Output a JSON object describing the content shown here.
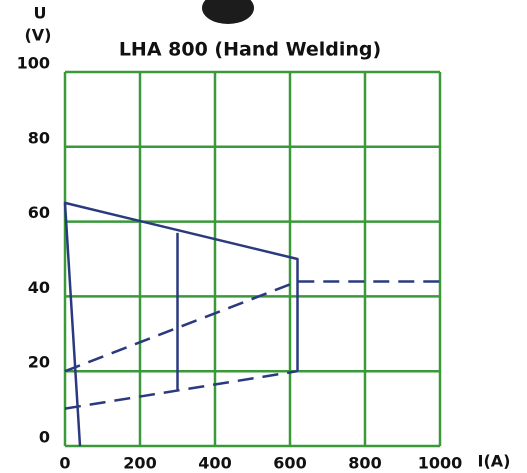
{
  "chart_data": {
    "type": "line",
    "title": "LHA 800 (Hand Welding)",
    "ylabel": "U",
    "yunit": "(V)",
    "xlabel": "I(A)",
    "xlim": [
      0,
      1000
    ],
    "xticks": [
      0,
      200,
      400,
      600,
      800,
      1000
    ],
    "ylim": [
      0,
      100
    ],
    "yticks": [
      0,
      20,
      40,
      60,
      80,
      100
    ],
    "grid": true,
    "grid_color": "#3a9a3a",
    "series": [
      {
        "color": "#2b3a7e",
        "dashed": false,
        "x": [
          40,
          0,
          620,
          620
        ],
        "values": [
          0,
          65,
          50,
          20
        ]
      },
      {
        "color": "#2b3a7e",
        "dashed": false,
        "x": [
          300,
          300
        ],
        "values": [
          57,
          15
        ]
      },
      {
        "color": "#2b3a7e",
        "dashed": true,
        "x": [
          0,
          620,
          1000
        ],
        "values": [
          20,
          44,
          44
        ]
      },
      {
        "color": "#2b3a7e",
        "dashed": true,
        "x": [
          0,
          620
        ],
        "values": [
          10,
          20
        ]
      }
    ]
  }
}
